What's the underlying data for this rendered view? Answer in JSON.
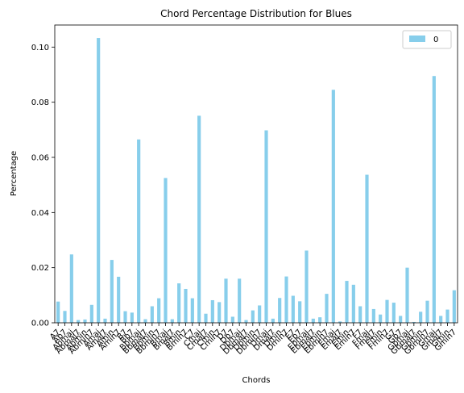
{
  "chart_data": {
    "type": "bar",
    "title": "Chord Percentage Distribution for Blues",
    "x_label": "Chords",
    "y_label": "Percentage",
    "categories": [
      "A7",
      "Ab7",
      "Abmaj",
      "Abmaj7",
      "Abmin",
      "Abmin7",
      "Amaj",
      "Amaj7",
      "Amin",
      "Amin7",
      "B7",
      "Bb7",
      "Bbmaj",
      "Bbmaj7",
      "Bbmin",
      "Bbmin7",
      "Bmaj",
      "Bmaj7",
      "Bmin",
      "Bmin7",
      "C7",
      "Cmaj",
      "Cmaj7",
      "Cmin",
      "Cmin7",
      "D7",
      "Db7",
      "Dbmaj",
      "Dbmaj7",
      "Dbmin",
      "Dbmin7",
      "Dmaj",
      "Dmaj7",
      "Dmin",
      "Dmin7",
      "E7",
      "Eb7",
      "Ebmaj",
      "Ebmaj7",
      "Ebmin",
      "Ebmin7",
      "Emaj",
      "Emaj7",
      "Emin",
      "Emin7",
      "F7",
      "Fmaj",
      "Fmaj7",
      "Fmin",
      "Fmin7",
      "G7",
      "Gb7",
      "Gbmaj",
      "Gbmaj7",
      "Gbmin",
      "Gbmin7",
      "Gmaj",
      "Gmaj7",
      "Gmin",
      "Gmin7"
    ],
    "series": [
      {
        "name": "0",
        "color": "#87ceeb",
        "values": [
          0.0077,
          0.0043,
          0.0248,
          0.001,
          0.0012,
          0.0065,
          0.1033,
          0.0015,
          0.0228,
          0.0167,
          0.0042,
          0.0037,
          0.0665,
          0.0013,
          0.006,
          0.0089,
          0.0525,
          0.0013,
          0.0143,
          0.0123,
          0.0089,
          0.0751,
          0.0033,
          0.0082,
          0.0075,
          0.016,
          0.0022,
          0.016,
          0.001,
          0.0045,
          0.0063,
          0.0698,
          0.0015,
          0.009,
          0.0168,
          0.0098,
          0.0078,
          0.0262,
          0.0015,
          0.002,
          0.0105,
          0.0845,
          0.0005,
          0.0152,
          0.0138,
          0.006,
          0.0537,
          0.005,
          0.003,
          0.0083,
          0.0073,
          0.0025,
          0.02,
          0.0003,
          0.004,
          0.008,
          0.0895,
          0.0025,
          0.0048,
          0.0118
        ]
      }
    ],
    "ylim": [
      0,
      0.108
    ],
    "yticks": [
      {
        "value": 0,
        "label": "0.00"
      },
      {
        "value": 0.02,
        "label": "0.02"
      },
      {
        "value": 0.04,
        "label": "0.04"
      },
      {
        "value": 0.06,
        "label": "0.06"
      },
      {
        "value": 0.08,
        "label": "0.08"
      },
      {
        "value": 0.1,
        "label": "0.10"
      }
    ],
    "legend": "upper right",
    "grid": false
  }
}
